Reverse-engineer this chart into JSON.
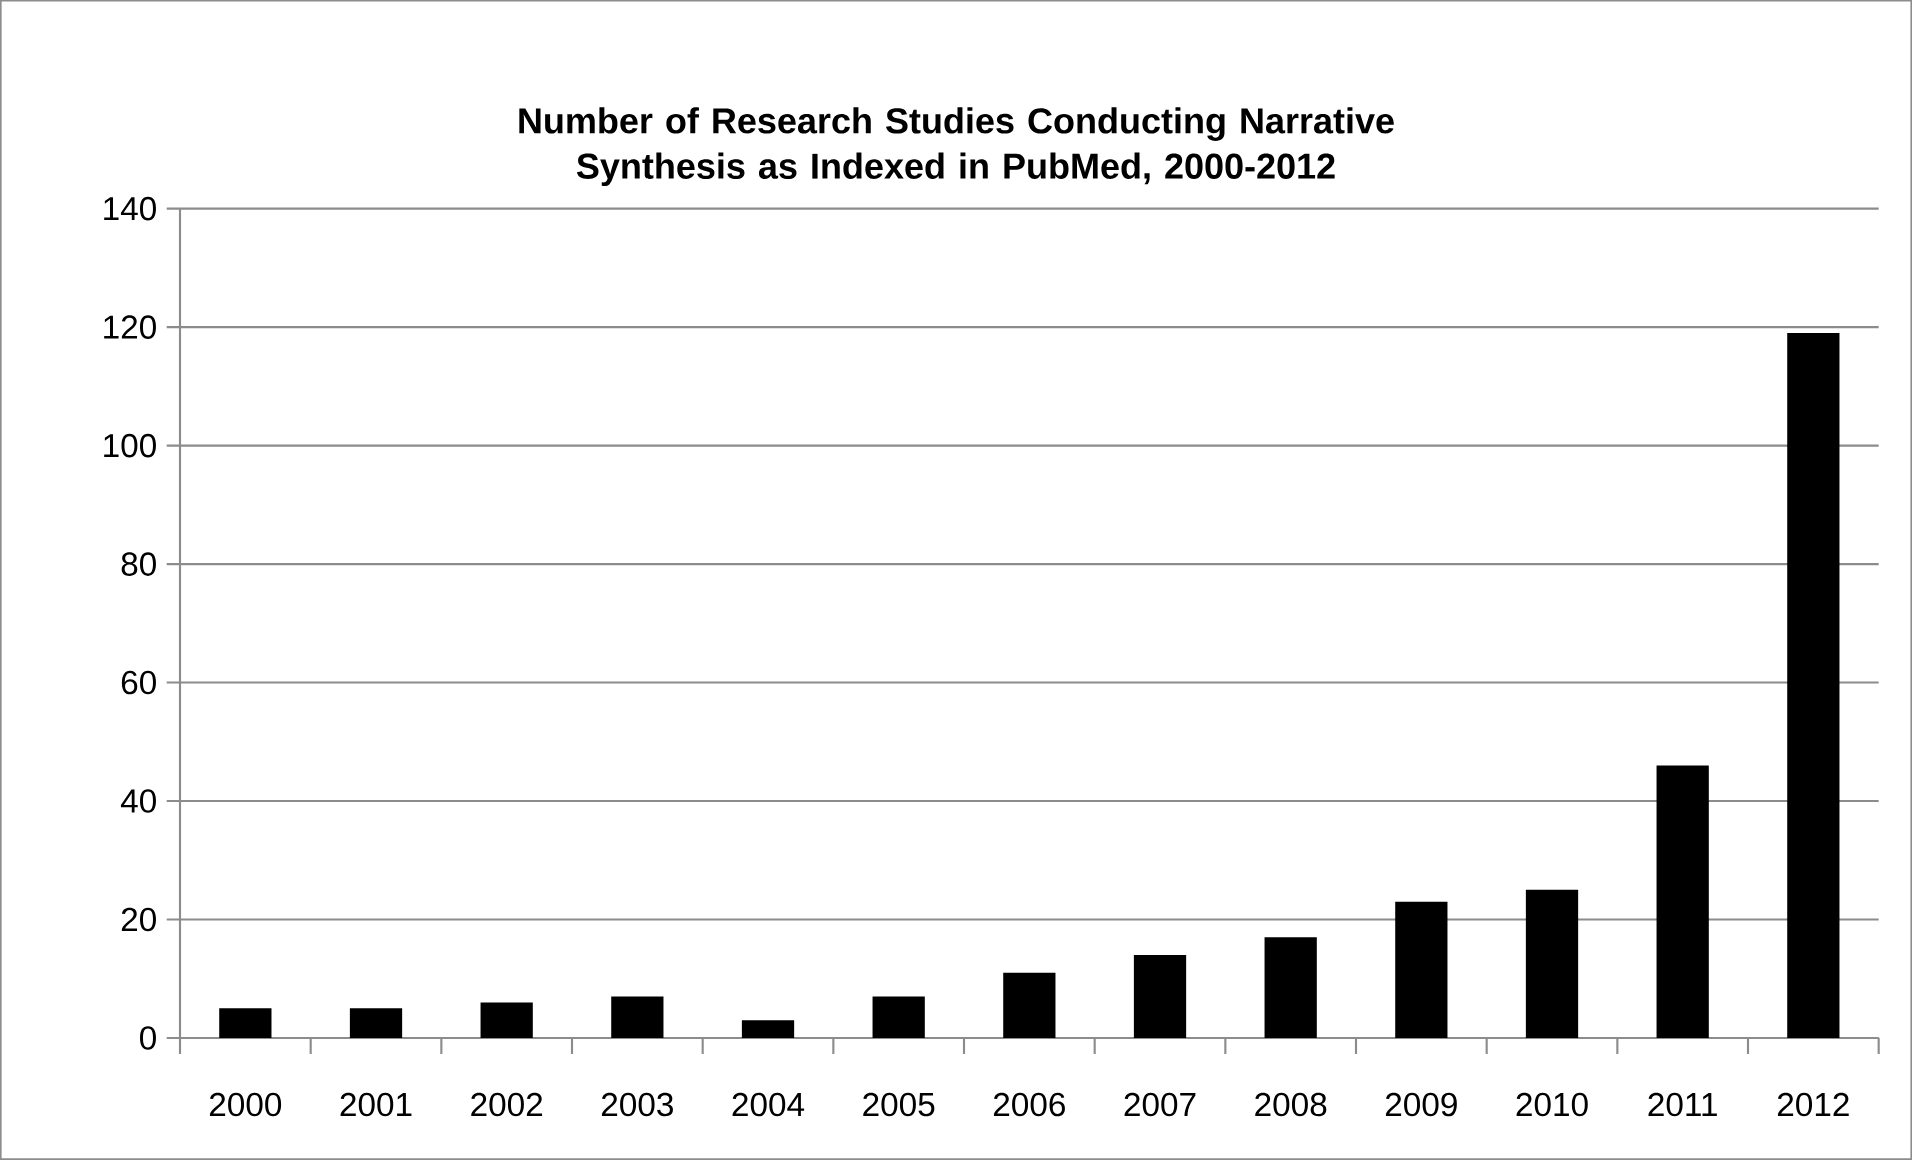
{
  "chart_data": {
    "type": "bar",
    "title": "Number of Research Studies Conducting Narrative Synthesis as Indexed in PubMed, 2000-2012",
    "categories": [
      "2000",
      "2001",
      "2002",
      "2003",
      "2004",
      "2005",
      "2006",
      "2007",
      "2008",
      "2009",
      "2010",
      "2011",
      "2012"
    ],
    "values": [
      5,
      5,
      6,
      7,
      3,
      7,
      11,
      14,
      17,
      23,
      25,
      46,
      119
    ],
    "color": "#000000",
    "ylim": [
      0,
      140
    ],
    "yticks": [
      0,
      20,
      40,
      60,
      80,
      100,
      120,
      140
    ],
    "grid": "y"
  }
}
